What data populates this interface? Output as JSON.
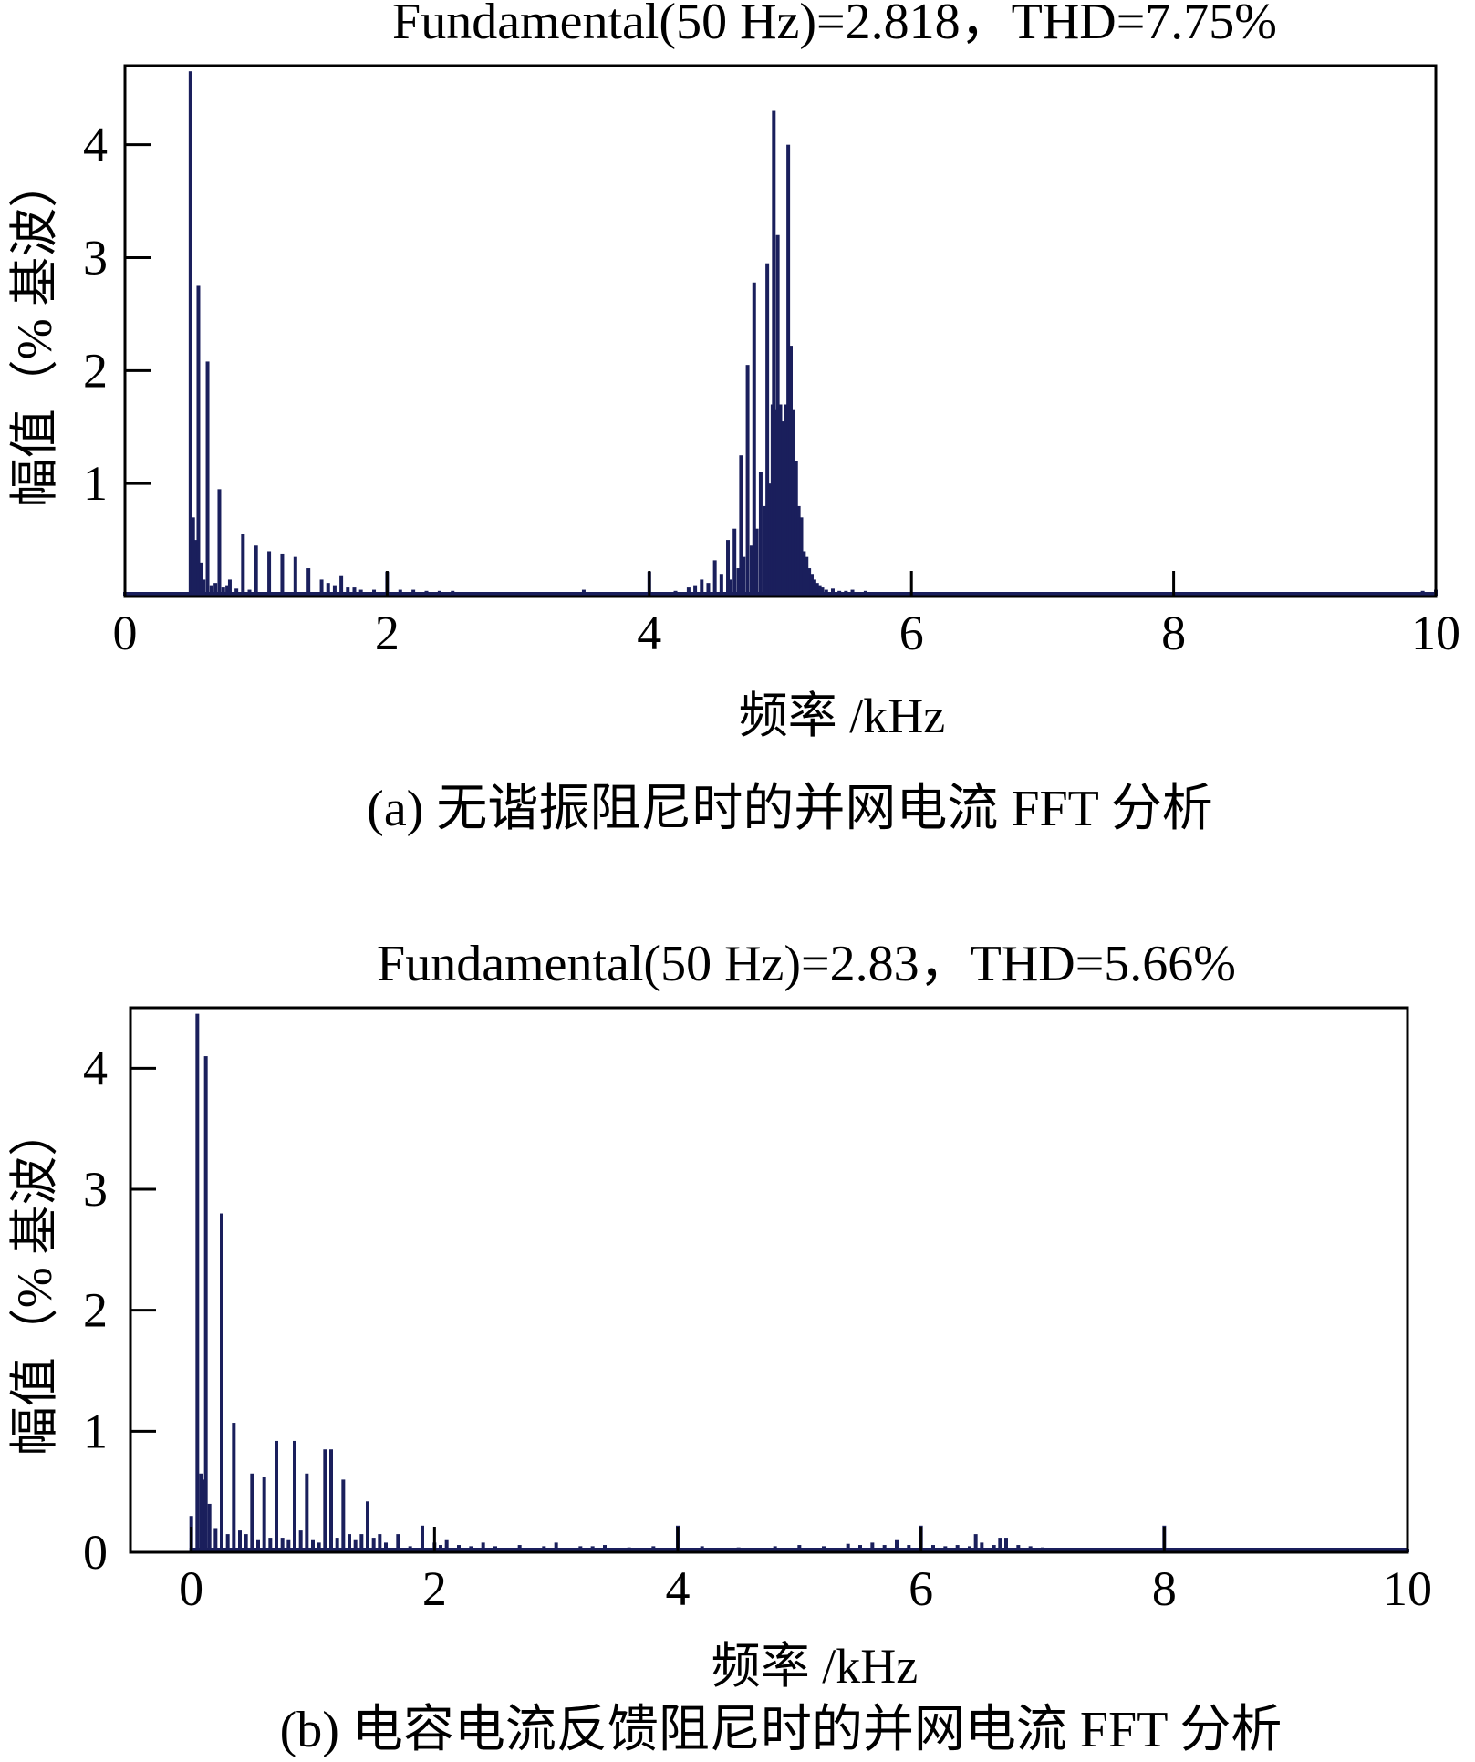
{
  "chart_data": [
    {
      "type": "bar",
      "title": "Fundamental(50 Hz)=2.818，THD=7.75%",
      "xlabel": "频率 /kHz",
      "ylabel": "幅值（% 基波）",
      "caption": "(a) 无谐振阻尼时的并网电流 FFT 分析",
      "xlim": [
        0,
        10
      ],
      "ylim": [
        0,
        4.7
      ],
      "xticks": [
        "0",
        "2",
        "4",
        "6",
        "8",
        "10"
      ],
      "yticks": [
        "1",
        "2",
        "3",
        "4"
      ],
      "grid": false,
      "color": "#1a1f5c",
      "x": [
        0.5,
        0.52,
        0.54,
        0.56,
        0.58,
        0.6,
        0.63,
        0.66,
        0.69,
        0.72,
        0.75,
        0.78,
        0.8,
        0.85,
        0.9,
        0.95,
        1.0,
        1.1,
        1.2,
        1.3,
        1.4,
        1.5,
        1.55,
        1.6,
        1.65,
        1.7,
        1.75,
        1.8,
        1.9,
        2.0,
        2.1,
        2.2,
        2.3,
        2.4,
        2.5,
        3.0,
        3.5,
        4.0,
        4.2,
        4.3,
        4.35,
        4.4,
        4.45,
        4.5,
        4.55,
        4.6,
        4.62,
        4.65,
        4.68,
        4.7,
        4.72,
        4.75,
        4.78,
        4.8,
        4.82,
        4.85,
        4.88,
        4.9,
        4.92,
        4.94,
        4.95,
        4.96,
        4.98,
        5.0,
        5.02,
        5.04,
        5.06,
        5.08,
        5.1,
        5.12,
        5.14,
        5.16,
        5.18,
        5.2,
        5.22,
        5.24,
        5.26,
        5.28,
        5.3,
        5.32,
        5.35,
        5.4,
        5.45,
        5.5,
        5.55,
        5.6,
        5.65,
        5.7,
        5.8,
        5.9,
        6.0,
        7.0,
        8.0,
        9.0,
        9.9,
        10.0
      ],
      "values": [
        4.65,
        0.7,
        0.5,
        2.75,
        0.3,
        0.15,
        2.08,
        0.1,
        0.12,
        0.95,
        0.08,
        0.1,
        0.15,
        0.07,
        0.55,
        0.06,
        0.45,
        0.4,
        0.38,
        0.35,
        0.25,
        0.15,
        0.12,
        0.1,
        0.18,
        0.08,
        0.08,
        0.06,
        0.06,
        0.22,
        0.06,
        0.06,
        0.05,
        0.05,
        0.05,
        0.03,
        0.06,
        0.22,
        0.05,
        0.08,
        0.1,
        0.15,
        0.12,
        0.32,
        0.2,
        0.5,
        0.15,
        0.6,
        0.25,
        1.25,
        0.35,
        2.05,
        0.45,
        2.78,
        0.6,
        1.1,
        0.8,
        2.95,
        1.0,
        1.7,
        4.3,
        1.65,
        3.2,
        1.7,
        1.55,
        1.7,
        4.0,
        2.22,
        1.65,
        1.2,
        0.8,
        0.7,
        0.4,
        0.35,
        0.25,
        0.2,
        0.15,
        0.12,
        0.1,
        0.08,
        0.06,
        0.07,
        0.05,
        0.05,
        0.06,
        0.04,
        0.05,
        0.04,
        0.03,
        0.04,
        0.03,
        0.03,
        0.02,
        0.03,
        0.05,
        0.06
      ]
    },
    {
      "type": "bar",
      "title": "Fundamental(50 Hz)=2.83，THD=5.66%",
      "xlabel": "频率 /kHz",
      "ylabel": "幅值（% 基波）",
      "caption": "(b) 电容电流反馈阻尼时的并网电流 FFT 分析",
      "xlim": [
        -0.5,
        10
      ],
      "ylim": [
        0,
        4.5
      ],
      "xticks": [
        "0",
        "2",
        "4",
        "6",
        "8",
        "10"
      ],
      "yticks": [
        "0",
        "1",
        "2",
        "3",
        "4"
      ],
      "grid": false,
      "color": "#1a1f5c",
      "x": [
        0.0,
        0.05,
        0.08,
        0.1,
        0.12,
        0.15,
        0.2,
        0.25,
        0.3,
        0.35,
        0.4,
        0.45,
        0.5,
        0.55,
        0.6,
        0.65,
        0.7,
        0.75,
        0.8,
        0.85,
        0.9,
        0.95,
        1.0,
        1.05,
        1.1,
        1.15,
        1.2,
        1.25,
        1.3,
        1.35,
        1.4,
        1.45,
        1.5,
        1.55,
        1.6,
        1.7,
        1.8,
        1.9,
        2.0,
        2.05,
        2.1,
        2.2,
        2.3,
        2.4,
        2.5,
        2.7,
        2.9,
        3.0,
        3.2,
        3.3,
        3.4,
        3.6,
        3.8,
        4.0,
        4.2,
        4.5,
        4.8,
        5.0,
        5.2,
        5.4,
        5.5,
        5.6,
        5.7,
        5.8,
        5.9,
        6.0,
        6.1,
        6.2,
        6.3,
        6.4,
        6.45,
        6.5,
        6.6,
        6.65,
        6.7,
        6.8,
        6.9,
        7.0,
        7.5,
        8.0,
        8.5,
        9.0,
        9.5,
        10.0
      ],
      "values": [
        0.3,
        4.45,
        0.65,
        0.6,
        4.1,
        0.4,
        0.2,
        2.8,
        0.15,
        1.07,
        0.18,
        0.15,
        0.65,
        0.1,
        0.62,
        0.12,
        0.92,
        0.12,
        0.1,
        0.92,
        0.18,
        0.65,
        0.1,
        0.08,
        0.85,
        0.85,
        0.12,
        0.6,
        0.15,
        0.1,
        0.15,
        0.42,
        0.12,
        0.15,
        0.08,
        0.15,
        0.05,
        0.22,
        0.08,
        0.06,
        0.1,
        0.06,
        0.05,
        0.08,
        0.05,
        0.06,
        0.05,
        0.08,
        0.05,
        0.05,
        0.06,
        0.04,
        0.05,
        0.22,
        0.05,
        0.04,
        0.05,
        0.06,
        0.05,
        0.07,
        0.06,
        0.08,
        0.06,
        0.1,
        0.06,
        0.22,
        0.06,
        0.05,
        0.06,
        0.05,
        0.15,
        0.08,
        0.06,
        0.12,
        0.12,
        0.06,
        0.05,
        0.04,
        0.03,
        0.22,
        0.03,
        0.03,
        0.03,
        0.03
      ]
    }
  ]
}
